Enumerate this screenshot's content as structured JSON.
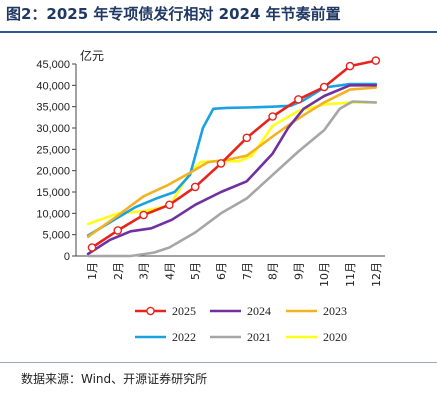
{
  "figure": {
    "title": "图2：2025 年专项债发行相对 2024 年节奏前置",
    "source": "数据来源：Wind、开源证券研究所"
  },
  "chart_data": {
    "type": "line",
    "title": "图2：2025 年专项债发行相对 2024 年节奏前置",
    "unit": "亿元",
    "xlabel": "",
    "ylabel": "亿元",
    "categories": [
      "1月",
      "2月",
      "3月",
      "4月",
      "5月",
      "6月",
      "7月",
      "8月",
      "9月",
      "10月",
      "11月",
      "12月"
    ],
    "ylim": [
      0,
      45000
    ],
    "yticks": [
      0,
      5000,
      10000,
      15000,
      20000,
      25000,
      30000,
      35000,
      40000,
      45000
    ],
    "ytick_labels": [
      "0",
      "5,000",
      "10,000",
      "15,000",
      "20,000",
      "25,000",
      "30,000",
      "35,000",
      "40,000",
      "45,000"
    ],
    "grid": false,
    "legend_position": "bottom",
    "series": [
      {
        "name": "2025",
        "color": "#e8231c",
        "marker": "circle",
        "values": [
          [
            0,
            2000
          ],
          [
            1,
            6000
          ],
          [
            2,
            9600
          ],
          [
            3,
            12000
          ],
          [
            4,
            16200
          ],
          [
            5,
            21700
          ],
          [
            6,
            27700
          ],
          [
            7,
            32700
          ],
          [
            8,
            36700
          ],
          [
            9,
            39600
          ],
          [
            10,
            44500
          ],
          [
            11,
            45800
          ]
        ]
      },
      {
        "name": "2024",
        "color": "#7030a0",
        "marker": "none",
        "values": [
          [
            -0.15,
            500
          ],
          [
            0.7,
            3800
          ],
          [
            1.5,
            5800
          ],
          [
            2.3,
            6500
          ],
          [
            3.1,
            8500
          ],
          [
            4,
            12000
          ],
          [
            5,
            15000
          ],
          [
            6,
            17500
          ],
          [
            7,
            24000
          ],
          [
            7.6,
            30000
          ],
          [
            8.2,
            34500
          ],
          [
            9,
            37500
          ],
          [
            10,
            40000
          ],
          [
            11,
            40000
          ]
        ]
      },
      {
        "name": "2023",
        "color": "#f4b120",
        "marker": "none",
        "values": [
          [
            -0.15,
            4500
          ],
          [
            1,
            9500
          ],
          [
            2,
            14000
          ],
          [
            2.9,
            16500
          ],
          [
            3.8,
            19500
          ],
          [
            4.5,
            22000
          ],
          [
            5.2,
            22500
          ],
          [
            6,
            23500
          ],
          [
            7,
            28000
          ],
          [
            7.7,
            31000
          ],
          [
            8.2,
            33000
          ],
          [
            9,
            36000
          ],
          [
            10,
            39000
          ],
          [
            11,
            39500
          ]
        ]
      },
      {
        "name": "2022",
        "color": "#1ba1e2",
        "marker": "none",
        "values": [
          [
            -0.15,
            4800
          ],
          [
            1,
            9000
          ],
          [
            1.7,
            11500
          ],
          [
            2.5,
            13500
          ],
          [
            3.2,
            15000
          ],
          [
            3.8,
            19000
          ],
          [
            4.3,
            30000
          ],
          [
            4.7,
            34500
          ],
          [
            5.2,
            34700
          ],
          [
            6,
            34800
          ],
          [
            7,
            35000
          ],
          [
            7.7,
            35200
          ],
          [
            8.2,
            36500
          ],
          [
            9,
            39500
          ],
          [
            10,
            40300
          ],
          [
            11,
            40300
          ]
        ]
      },
      {
        "name": "2021",
        "color": "#a6a6a6",
        "marker": "none",
        "values": [
          [
            -0.15,
            0
          ],
          [
            1.5,
            0
          ],
          [
            2.4,
            800
          ],
          [
            3,
            2000
          ],
          [
            4,
            5500
          ],
          [
            5,
            10000
          ],
          [
            6,
            13500
          ],
          [
            7,
            19000
          ],
          [
            8,
            24500
          ],
          [
            9,
            29500
          ],
          [
            9.6,
            34500
          ],
          [
            10.1,
            36200
          ],
          [
            11,
            36000
          ]
        ]
      },
      {
        "name": "2020",
        "color": "#ffff1a",
        "marker": "none",
        "values": [
          [
            -0.15,
            7500
          ],
          [
            1,
            10000
          ],
          [
            2,
            10500
          ],
          [
            3,
            11800
          ],
          [
            3.8,
            19500
          ],
          [
            4.2,
            22000
          ],
          [
            5,
            22300
          ],
          [
            5.7,
            22200
          ],
          [
            6.2,
            23500
          ],
          [
            7,
            30500
          ],
          [
            8,
            34000
          ],
          [
            9,
            35500
          ],
          [
            10,
            36000
          ],
          [
            11,
            36000
          ]
        ]
      }
    ],
    "legend": [
      {
        "name": "2025",
        "color": "#e8231c",
        "marker": "circle"
      },
      {
        "name": "2024",
        "color": "#7030a0",
        "marker": "none"
      },
      {
        "name": "2023",
        "color": "#f4b120",
        "marker": "none"
      },
      {
        "name": "2022",
        "color": "#1ba1e2",
        "marker": "none"
      },
      {
        "name": "2021",
        "color": "#a6a6a6",
        "marker": "none"
      },
      {
        "name": "2020",
        "color": "#ffff1a",
        "marker": "none"
      }
    ]
  }
}
